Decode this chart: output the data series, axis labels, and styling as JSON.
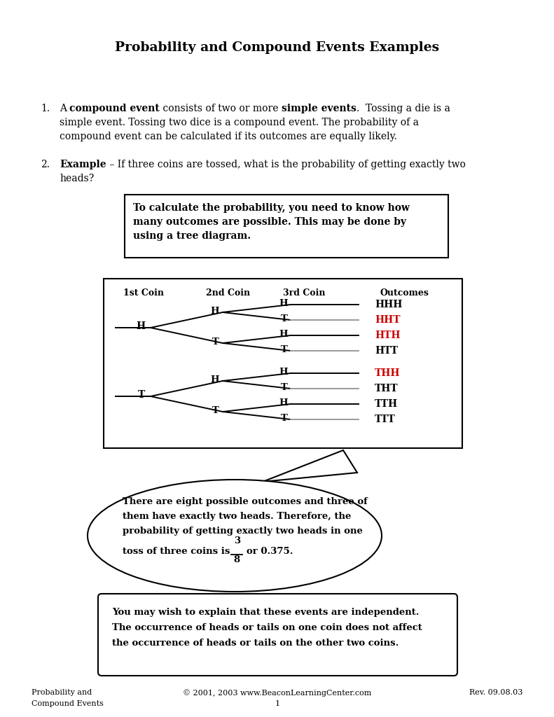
{
  "title": "Probability and Compound Events Examples",
  "bg_color": "#ffffff",
  "text_color": "#000000",
  "red_color": "#cc0000",
  "item1_pre_bold1": "A ",
  "item1_bold1": "compound event",
  "item1_mid": " consists of two or more ",
  "item1_bold2": "simple events",
  "item1_after": ".  Tossing a die is a",
  "item1_line2": "simple event. Tossing two dice is a compound event. The probability of a",
  "item1_line3": "compound event can be calculated if its outcomes are equally likely.",
  "item2_bold": "Example",
  "item2_rest": " – If three coins are tossed, what is the probability of getting exactly two",
  "item2_line2": "heads?",
  "box1_line1": "To calculate the probability, you need to know how",
  "box1_line2": "many outcomes are possible. This may be done by",
  "box1_line3": "using a tree diagram.",
  "col1": "1st Coin",
  "col2": "2nd Coin",
  "col3": "3rd Coin",
  "col4": "Outcomes",
  "outcomes": [
    "HHH",
    "HHT",
    "HTH",
    "HTT",
    "THH",
    "THT",
    "TTH",
    "TTT"
  ],
  "red_outcomes": [
    "HHT",
    "HTH",
    "THH"
  ],
  "bub_line1": "There are eight possible outcomes and three of",
  "bub_line2": "them have exactly two heads. Therefore, the",
  "bub_line3": "probability of getting exactly two heads in one",
  "bub_pre_frac": "toss of three coins is",
  "bub_post_frac": "or 0.375.",
  "note_line1": "You may wish to explain that these events are independent.",
  "note_line2": "The occurrence of heads or tails on one coin does not affect",
  "note_line3": "the occurrence of heads or tails on the other two coins.",
  "footer_left1": "Probability and",
  "footer_left2": "Compound Events",
  "footer_mid1": "© 2001, 2003 www.BeaconLearningCenter.com",
  "footer_mid2": "1",
  "footer_right": "Rev. 09.08.03"
}
